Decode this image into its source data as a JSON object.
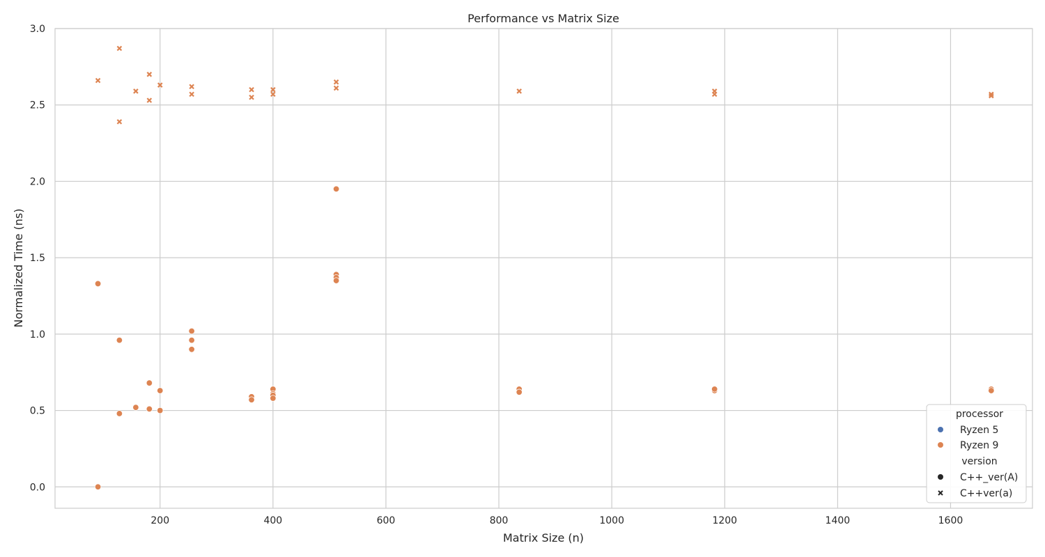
{
  "chart_data": {
    "type": "scatter",
    "title": "Performance vs Matrix Size",
    "xlabel": "Matrix Size (n)",
    "ylabel": "Normalized Time (ns)",
    "xlim": [
      14,
      1745
    ],
    "ylim": [
      -0.14,
      3.0
    ],
    "xticks": [
      200,
      400,
      600,
      800,
      1000,
      1200,
      1400,
      1600
    ],
    "yticks": [
      0.0,
      0.5,
      1.0,
      1.5,
      2.0,
      2.5,
      3.0
    ],
    "ytick_labels": [
      "0.0",
      "0.5",
      "1.0",
      "1.5",
      "2.0",
      "2.5",
      "3.0"
    ],
    "grid": true,
    "legend_position": "bottom-right",
    "colors": {
      "Ryzen 5": "#4c72b0",
      "Ryzen 9": "#dd8452"
    },
    "legend": {
      "hue_title": "processor",
      "hue_entries": [
        {
          "name": "Ryzen 5",
          "color": "#4c72b0"
        },
        {
          "name": "Ryzen 9",
          "color": "#dd8452"
        }
      ],
      "style_title": "version",
      "style_entries": [
        {
          "name": "C++_ver(A)",
          "marker": "circle"
        },
        {
          "name": "C++ver(a)",
          "marker": "x"
        }
      ]
    },
    "series": [
      {
        "processor": "Ryzen 9",
        "version": "C++_ver(A)",
        "marker": "circle",
        "points": [
          [
            90,
            0.0
          ],
          [
            90,
            1.33
          ],
          [
            128,
            0.96
          ],
          [
            128,
            0.48
          ],
          [
            157,
            0.52
          ],
          [
            181,
            0.68
          ],
          [
            181,
            0.51
          ],
          [
            200,
            0.63
          ],
          [
            200,
            0.5
          ],
          [
            256,
            1.02
          ],
          [
            256,
            0.96
          ],
          [
            256,
            0.9
          ],
          [
            362,
            0.59
          ],
          [
            362,
            0.57
          ],
          [
            400,
            0.64
          ],
          [
            400,
            0.61
          ],
          [
            400,
            0.6
          ],
          [
            400,
            0.58
          ],
          [
            512,
            1.95
          ],
          [
            512,
            1.39
          ],
          [
            512,
            1.37
          ],
          [
            512,
            1.35
          ],
          [
            836,
            0.64
          ],
          [
            836,
            0.62
          ],
          [
            1182,
            0.63
          ],
          [
            1182,
            0.64
          ],
          [
            1672,
            0.64
          ],
          [
            1672,
            0.63
          ]
        ]
      },
      {
        "processor": "Ryzen 9",
        "version": "C++ver(a)",
        "marker": "x",
        "points": [
          [
            90,
            2.66
          ],
          [
            128,
            2.87
          ],
          [
            128,
            2.39
          ],
          [
            157,
            2.59
          ],
          [
            181,
            2.7
          ],
          [
            181,
            2.53
          ],
          [
            200,
            2.63
          ],
          [
            256,
            2.62
          ],
          [
            256,
            2.57
          ],
          [
            362,
            2.6
          ],
          [
            362,
            2.55
          ],
          [
            400,
            2.6
          ],
          [
            400,
            2.57
          ],
          [
            512,
            2.65
          ],
          [
            512,
            2.61
          ],
          [
            836,
            2.59
          ],
          [
            1182,
            2.59
          ],
          [
            1182,
            2.57
          ],
          [
            1672,
            2.57
          ],
          [
            1672,
            2.56
          ]
        ]
      }
    ]
  }
}
